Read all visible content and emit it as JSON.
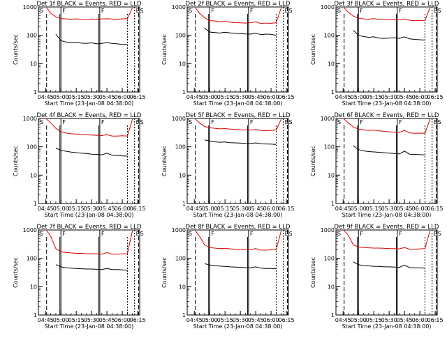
{
  "figure": {
    "start_time_label": "Start Time (23-Jan-08 04:38:00)",
    "ylabel": "Counts/sec"
  },
  "colors": {
    "events": "#000000",
    "lld": "#dd0000",
    "axes": "#000000"
  },
  "axes_common": {
    "yscale": "log",
    "ylim": [
      1,
      1000
    ],
    "y_tick_labels": [
      "1",
      "10",
      "100",
      "1000"
    ],
    "x_tick_labels": [
      "04:45",
      "05:00",
      "05:15",
      "05:30",
      "05:45",
      "06:00",
      "06:15"
    ],
    "x_range": [
      "04:38",
      "06:17"
    ]
  },
  "chart_data": [
    {
      "type": "line",
      "title": "Det 1f BLACK = Events, RED = LLD",
      "series": [
        {
          "name": "Events",
          "color": "#000000",
          "x": [
            "04:46",
            "04:50",
            "04:55",
            "05:00",
            "05:05",
            "05:10",
            "05:15",
            "05:20",
            "05:25",
            "05:30",
            "05:35",
            "05:40",
            "05:45",
            "05:50",
            "05:55",
            "06:00",
            "06:05",
            "06:10"
          ],
          "values": [
            null,
            null,
            110,
            65,
            58,
            55,
            56,
            53,
            52,
            54,
            50,
            52,
            55,
            52,
            50,
            48,
            47,
            null
          ]
        },
        {
          "name": "LLD",
          "color": "#dd0000",
          "x": [
            "04:46",
            "04:50",
            "04:55",
            "05:00",
            "05:05",
            "05:10",
            "05:15",
            "05:20",
            "05:25",
            "05:30",
            "05:35",
            "05:40",
            "05:45",
            "05:50",
            "05:55",
            "06:00",
            "06:05",
            "06:10"
          ],
          "values": [
            950,
            600,
            450,
            390,
            380,
            370,
            380,
            370,
            365,
            375,
            370,
            380,
            385,
            375,
            370,
            380,
            390,
            950
          ]
        }
      ],
      "markers": [
        {
          "label": "S",
          "x": "04:38"
        },
        {
          "label": "F",
          "x": "05:00"
        },
        {
          "label": "F",
          "x": "05:38"
        },
        {
          "label": "E",
          "x": "06:12"
        },
        {
          "label": "S",
          "x": "06:16"
        }
      ]
    },
    {
      "type": "line",
      "title": "Det 2f BLACK = Events, RED = LLD",
      "series": [
        {
          "name": "Events",
          "color": "#000000",
          "x": [
            "04:46",
            "04:50",
            "04:55",
            "05:00",
            "05:05",
            "05:10",
            "05:15",
            "05:20",
            "05:25",
            "05:30",
            "05:35",
            "05:40",
            "05:45",
            "05:50",
            "05:55",
            "06:00",
            "06:05",
            "06:10"
          ],
          "values": [
            null,
            null,
            180,
            130,
            125,
            120,
            128,
            122,
            118,
            115,
            112,
            110,
            120,
            105,
            110,
            108,
            100,
            null
          ]
        },
        {
          "name": "LLD",
          "color": "#dd0000",
          "x": [
            "04:46",
            "04:50",
            "04:55",
            "05:00",
            "05:05",
            "05:10",
            "05:15",
            "05:20",
            "05:25",
            "05:30",
            "05:35",
            "05:40",
            "05:45",
            "05:50",
            "05:55",
            "06:00",
            "06:05",
            "06:10"
          ],
          "values": [
            950,
            600,
            420,
            330,
            320,
            300,
            310,
            290,
            280,
            275,
            270,
            280,
            300,
            260,
            270,
            265,
            280,
            950
          ]
        }
      ],
      "markers": [
        {
          "label": "S",
          "x": "04:38"
        },
        {
          "label": "F",
          "x": "05:00"
        },
        {
          "label": "F",
          "x": "05:38"
        },
        {
          "label": "E",
          "x": "06:12"
        },
        {
          "label": "S",
          "x": "06:16"
        }
      ]
    },
    {
      "type": "line",
      "title": "Det 3f BLACK = Events, RED = LLD",
      "series": [
        {
          "name": "Events",
          "color": "#000000",
          "x": [
            "04:46",
            "04:50",
            "04:55",
            "05:00",
            "05:05",
            "05:10",
            "05:15",
            "05:20",
            "05:25",
            "05:30",
            "05:35",
            "05:40",
            "05:45",
            "05:50",
            "05:55",
            "06:00",
            "06:05",
            "06:10"
          ],
          "values": [
            null,
            null,
            150,
            100,
            90,
            85,
            88,
            80,
            78,
            80,
            82,
            78,
            88,
            75,
            72,
            70,
            68,
            null
          ]
        },
        {
          "name": "LLD",
          "color": "#dd0000",
          "x": [
            "04:46",
            "04:50",
            "04:55",
            "05:00",
            "05:05",
            "05:10",
            "05:15",
            "05:20",
            "05:25",
            "05:30",
            "05:35",
            "05:40",
            "05:45",
            "05:50",
            "05:55",
            "06:00",
            "06:05",
            "06:10"
          ],
          "values": [
            950,
            650,
            480,
            400,
            380,
            370,
            390,
            360,
            350,
            360,
            370,
            350,
            380,
            340,
            330,
            330,
            330,
            950
          ]
        }
      ],
      "markers": [
        {
          "label": "S",
          "x": "04:38"
        },
        {
          "label": "F",
          "x": "05:00"
        },
        {
          "label": "F",
          "x": "05:38"
        },
        {
          "label": "E",
          "x": "06:12"
        },
        {
          "label": "S",
          "x": "06:16"
        }
      ]
    },
    {
      "type": "line",
      "title": "Det 4f BLACK = Events, RED = LLD",
      "series": [
        {
          "name": "Events",
          "color": "#000000",
          "x": [
            "04:46",
            "04:50",
            "04:55",
            "05:00",
            "05:05",
            "05:10",
            "05:15",
            "05:20",
            "05:25",
            "05:30",
            "05:35",
            "05:40",
            "05:45",
            "05:50",
            "05:55",
            "06:00",
            "06:05",
            "06:10"
          ],
          "values": [
            null,
            null,
            90,
            75,
            70,
            65,
            62,
            60,
            58,
            55,
            54,
            52,
            60,
            50,
            50,
            48,
            47,
            null
          ]
        },
        {
          "name": "LLD",
          "color": "#dd0000",
          "x": [
            "04:46",
            "04:50",
            "04:55",
            "05:00",
            "05:05",
            "05:10",
            "05:15",
            "05:20",
            "05:25",
            "05:30",
            "05:35",
            "05:40",
            "05:45",
            "05:50",
            "05:55",
            "06:00",
            "06:05",
            "06:10"
          ],
          "values": [
            950,
            700,
            450,
            340,
            310,
            290,
            280,
            270,
            265,
            260,
            255,
            250,
            270,
            240,
            240,
            245,
            240,
            950
          ]
        }
      ],
      "markers": [
        {
          "label": "S",
          "x": "04:38"
        },
        {
          "label": "F",
          "x": "05:00"
        },
        {
          "label": "F",
          "x": "05:38"
        },
        {
          "label": "E",
          "x": "06:12"
        },
        {
          "label": "S",
          "x": "06:16"
        }
      ]
    },
    {
      "type": "line",
      "title": "Det 5f BLACK = Events, RED = LLD",
      "series": [
        {
          "name": "Events",
          "color": "#000000",
          "x": [
            "04:46",
            "04:50",
            "04:55",
            "05:00",
            "05:05",
            "05:10",
            "05:15",
            "05:20",
            "05:25",
            "05:30",
            "05:35",
            "05:40",
            "05:45",
            "05:50",
            "05:55",
            "06:00",
            "06:05",
            "06:10"
          ],
          "values": [
            null,
            null,
            175,
            160,
            150,
            145,
            148,
            140,
            138,
            135,
            132,
            130,
            138,
            128,
            126,
            125,
            120,
            null
          ]
        },
        {
          "name": "LLD",
          "color": "#dd0000",
          "x": [
            "04:46",
            "04:50",
            "04:55",
            "05:00",
            "05:05",
            "05:10",
            "05:15",
            "05:20",
            "05:25",
            "05:30",
            "05:35",
            "05:40",
            "05:45",
            "05:50",
            "05:55",
            "06:00",
            "06:05",
            "06:10"
          ],
          "values": [
            950,
            700,
            520,
            470,
            450,
            430,
            440,
            420,
            410,
            400,
            395,
            390,
            410,
            380,
            370,
            380,
            390,
            950
          ]
        }
      ],
      "markers": [
        {
          "label": "S",
          "x": "04:38"
        },
        {
          "label": "F",
          "x": "05:00"
        },
        {
          "label": "F",
          "x": "05:38"
        },
        {
          "label": "E",
          "x": "06:12"
        },
        {
          "label": "S",
          "x": "06:16"
        }
      ]
    },
    {
      "type": "line",
      "title": "Det 6f BLACK = Events, RED = LLD",
      "series": [
        {
          "name": "Events",
          "color": "#000000",
          "x": [
            "04:46",
            "04:50",
            "04:55",
            "05:00",
            "05:05",
            "05:10",
            "05:15",
            "05:20",
            "05:25",
            "05:30",
            "05:35",
            "05:40",
            "05:45",
            "05:50",
            "05:55",
            "06:00",
            "06:05",
            "06:10"
          ],
          "values": [
            null,
            null,
            110,
            80,
            72,
            68,
            66,
            64,
            62,
            60,
            58,
            56,
            70,
            55,
            54,
            53,
            52,
            null
          ]
        },
        {
          "name": "LLD",
          "color": "#dd0000",
          "x": [
            "04:46",
            "04:50",
            "04:55",
            "05:00",
            "05:05",
            "05:10",
            "05:15",
            "05:20",
            "05:25",
            "05:30",
            "05:35",
            "05:40",
            "05:45",
            "05:50",
            "05:55",
            "06:00",
            "06:05",
            "06:10"
          ],
          "values": [
            950,
            700,
            500,
            420,
            400,
            380,
            390,
            370,
            350,
            340,
            330,
            320,
            380,
            310,
            300,
            305,
            300,
            950
          ]
        }
      ],
      "markers": [
        {
          "label": "S",
          "x": "04:38"
        },
        {
          "label": "F",
          "x": "05:00"
        },
        {
          "label": "F",
          "x": "05:38"
        },
        {
          "label": "E",
          "x": "06:12"
        },
        {
          "label": "S",
          "x": "06:16"
        }
      ]
    },
    {
      "type": "line",
      "title": "Det 7f BLACK = Events, RED = LLD",
      "series": [
        {
          "name": "Events",
          "color": "#000000",
          "x": [
            "04:46",
            "04:50",
            "04:55",
            "05:00",
            "05:05",
            "05:10",
            "05:15",
            "05:20",
            "05:25",
            "05:30",
            "05:35",
            "05:40",
            "05:45",
            "05:50",
            "05:55",
            "06:00",
            "06:05",
            "06:10"
          ],
          "values": [
            null,
            null,
            60,
            50,
            46,
            45,
            44,
            43,
            42,
            42,
            41,
            40,
            44,
            40,
            40,
            39,
            38,
            null
          ]
        },
        {
          "name": "LLD",
          "color": "#dd0000",
          "x": [
            "04:46",
            "04:50",
            "04:55",
            "05:00",
            "05:05",
            "05:10",
            "05:15",
            "05:20",
            "05:25",
            "05:30",
            "05:35",
            "05:40",
            "05:45",
            "05:50",
            "05:55",
            "06:00",
            "06:05",
            "06:10"
          ],
          "values": [
            950,
            600,
            220,
            170,
            160,
            155,
            150,
            150,
            145,
            145,
            145,
            140,
            160,
            140,
            140,
            145,
            145,
            950
          ]
        }
      ],
      "markers": [
        {
          "label": "S",
          "x": "04:38"
        },
        {
          "label": "F",
          "x": "05:00"
        },
        {
          "label": "F",
          "x": "05:38"
        },
        {
          "label": "E",
          "x": "06:12"
        },
        {
          "label": "S",
          "x": "06:16"
        }
      ]
    },
    {
      "type": "line",
      "title": "Det 8f BLACK = Events, RED = LLD",
      "series": [
        {
          "name": "Events",
          "color": "#000000",
          "x": [
            "04:46",
            "04:50",
            "04:55",
            "05:00",
            "05:05",
            "05:10",
            "05:15",
            "05:20",
            "05:25",
            "05:30",
            "05:35",
            "05:40",
            "05:45",
            "05:50",
            "05:55",
            "06:00",
            "06:05",
            "06:10"
          ],
          "values": [
            null,
            null,
            65,
            58,
            55,
            53,
            52,
            50,
            49,
            48,
            47,
            46,
            50,
            45,
            44,
            44,
            43,
            null
          ]
        },
        {
          "name": "LLD",
          "color": "#dd0000",
          "x": [
            "04:46",
            "04:50",
            "04:55",
            "05:00",
            "05:05",
            "05:10",
            "05:15",
            "05:20",
            "05:25",
            "05:30",
            "05:35",
            "05:40",
            "05:45",
            "05:50",
            "05:55",
            "06:00",
            "06:05",
            "06:10"
          ],
          "values": [
            950,
            600,
            300,
            240,
            230,
            220,
            225,
            215,
            210,
            205,
            200,
            200,
            220,
            195,
            195,
            200,
            200,
            950
          ]
        }
      ],
      "markers": [
        {
          "label": "S",
          "x": "04:38"
        },
        {
          "label": "F",
          "x": "05:00"
        },
        {
          "label": "F",
          "x": "05:38"
        },
        {
          "label": "E",
          "x": "06:12"
        },
        {
          "label": "S",
          "x": "06:16"
        }
      ]
    },
    {
      "type": "line",
      "title": "Det 9f BLACK = Events, RED = LLD",
      "series": [
        {
          "name": "Events",
          "color": "#000000",
          "x": [
            "04:46",
            "04:50",
            "04:55",
            "05:00",
            "05:05",
            "05:10",
            "05:15",
            "05:20",
            "05:25",
            "05:30",
            "05:35",
            "05:40",
            "05:45",
            "05:50",
            "05:55",
            "06:00",
            "06:05",
            "06:10"
          ],
          "values": [
            null,
            null,
            75,
            60,
            55,
            54,
            52,
            52,
            50,
            50,
            49,
            48,
            58,
            47,
            46,
            46,
            45,
            null
          ]
        },
        {
          "name": "LLD",
          "color": "#dd0000",
          "x": [
            "04:46",
            "04:50",
            "04:55",
            "05:00",
            "05:05",
            "05:10",
            "05:15",
            "05:20",
            "05:25",
            "05:30",
            "05:35",
            "05:40",
            "05:45",
            "05:50",
            "05:55",
            "06:00",
            "06:05",
            "06:10"
          ],
          "values": [
            950,
            650,
            300,
            250,
            240,
            235,
            230,
            230,
            225,
            220,
            220,
            215,
            240,
            210,
            210,
            215,
            220,
            950
          ]
        }
      ],
      "markers": [
        {
          "label": "S",
          "x": "04:38"
        },
        {
          "label": "F",
          "x": "05:00"
        },
        {
          "label": "F",
          "x": "05:38"
        },
        {
          "label": "E",
          "x": "06:12"
        },
        {
          "label": "S",
          "x": "06:16"
        }
      ]
    }
  ]
}
